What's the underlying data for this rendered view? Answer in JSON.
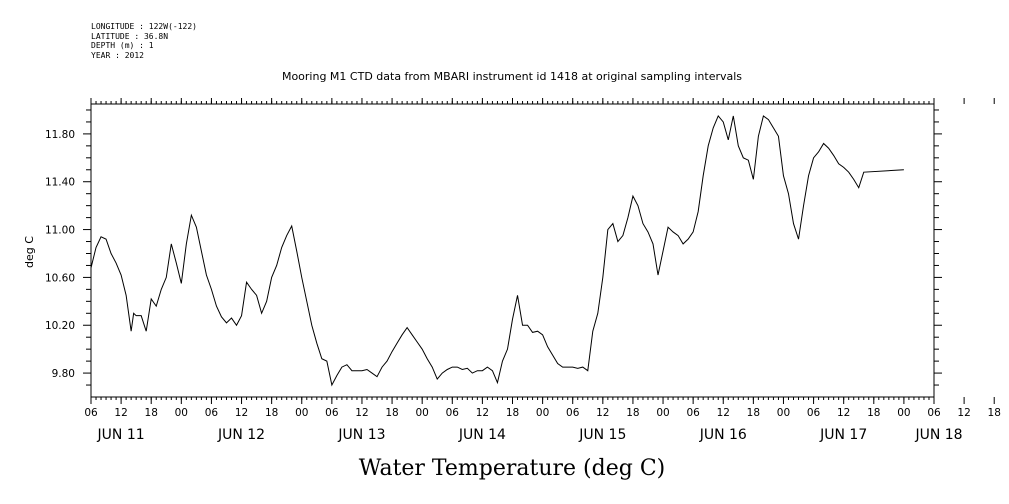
{
  "header_info": [
    "LONGITUDE : 122W(-122)",
    "LATITUDE : 36.8N",
    "DEPTH (m) : 1",
    "YEAR : 2012"
  ],
  "chart_data": {
    "type": "line",
    "title": "Mooring M1 CTD data from MBARI instrument id 1418 at original sampling intervals",
    "xlabel": "Water Temperature (deg C)",
    "ylabel": "deg C",
    "xlim": [
      "JUN 11 06:00",
      "JUN 18 06:00"
    ],
    "ylim": [
      9.6,
      12.05
    ],
    "yticks": [
      9.8,
      10.2,
      10.6,
      11.0,
      11.4,
      11.8
    ],
    "ytick_labels": [
      "9.80",
      "10.20",
      "10.60",
      "11.00",
      "11.40",
      "11.80"
    ],
    "xtick_hours": [
      "06",
      "12",
      "18",
      "00",
      "06",
      "12",
      "18",
      "00",
      "06",
      "12",
      "18",
      "00",
      "06",
      "12",
      "18",
      "00",
      "06",
      "12",
      "18",
      "00",
      "06",
      "12",
      "18",
      "00",
      "06",
      "12",
      "18",
      "00",
      "06",
      "12",
      "18",
      "00",
      "06",
      "12",
      "18",
      "00"
    ],
    "day_labels": [
      "JUN 11",
      "JUN 12",
      "JUN 13",
      "JUN 14",
      "JUN 15",
      "JUN 16",
      "JUN 17",
      "JUN 18"
    ],
    "grid": false,
    "series": [
      {
        "color": "#000000",
        "points": [
          [
            "JUN 11 06:00",
            10.68
          ],
          [
            "JUN 11 07:00",
            10.85
          ],
          [
            "JUN 11 08:00",
            10.94
          ],
          [
            "JUN 11 09:00",
            10.92
          ],
          [
            "JUN 11 10:00",
            10.8
          ],
          [
            "JUN 11 11:00",
            10.72
          ],
          [
            "JUN 11 12:00",
            10.62
          ],
          [
            "JUN 11 13:00",
            10.45
          ],
          [
            "JUN 11 14:00",
            10.15
          ],
          [
            "JUN 11 14:30",
            10.3
          ],
          [
            "JUN 11 15:00",
            10.28
          ],
          [
            "JUN 11 16:00",
            10.28
          ],
          [
            "JUN 11 17:00",
            10.15
          ],
          [
            "JUN 11 18:00",
            10.42
          ],
          [
            "JUN 11 19:00",
            10.36
          ],
          [
            "JUN 11 20:00",
            10.5
          ],
          [
            "JUN 11 21:00",
            10.6
          ],
          [
            "JUN 11 22:00",
            10.88
          ],
          [
            "JUN 11 23:00",
            10.72
          ],
          [
            "JUN 12 00:00",
            10.55
          ],
          [
            "JUN 12 01:00",
            10.88
          ],
          [
            "JUN 12 02:00",
            11.12
          ],
          [
            "JUN 12 03:00",
            11.02
          ],
          [
            "JUN 12 04:00",
            10.82
          ],
          [
            "JUN 12 05:00",
            10.62
          ],
          [
            "JUN 12 06:00",
            10.5
          ],
          [
            "JUN 12 07:00",
            10.36
          ],
          [
            "JUN 12 08:00",
            10.27
          ],
          [
            "JUN 12 09:00",
            10.22
          ],
          [
            "JUN 12 10:00",
            10.26
          ],
          [
            "JUN 12 11:00",
            10.2
          ],
          [
            "JUN 12 12:00",
            10.28
          ],
          [
            "JUN 12 13:00",
            10.56
          ],
          [
            "JUN 12 14:00",
            10.5
          ],
          [
            "JUN 12 15:00",
            10.45
          ],
          [
            "JUN 12 16:00",
            10.3
          ],
          [
            "JUN 12 17:00",
            10.4
          ],
          [
            "JUN 12 18:00",
            10.6
          ],
          [
            "JUN 12 19:00",
            10.7
          ],
          [
            "JUN 12 20:00",
            10.85
          ],
          [
            "JUN 12 21:00",
            10.95
          ],
          [
            "JUN 12 22:00",
            11.03
          ],
          [
            "JUN 12 23:00",
            10.82
          ],
          [
            "JUN 13 00:00",
            10.6
          ],
          [
            "JUN 13 01:00",
            10.4
          ],
          [
            "JUN 13 02:00",
            10.2
          ],
          [
            "JUN 13 03:00",
            10.05
          ],
          [
            "JUN 13 04:00",
            9.92
          ],
          [
            "JUN 13 05:00",
            9.9
          ],
          [
            "JUN 13 06:00",
            9.7
          ],
          [
            "JUN 13 07:00",
            9.78
          ],
          [
            "JUN 13 08:00",
            9.85
          ],
          [
            "JUN 13 09:00",
            9.87
          ],
          [
            "JUN 13 10:00",
            9.82
          ],
          [
            "JUN 13 11:00",
            9.82
          ],
          [
            "JUN 13 12:00",
            9.82
          ],
          [
            "JUN 13 13:00",
            9.83
          ],
          [
            "JUN 13 14:00",
            9.8
          ],
          [
            "JUN 13 15:00",
            9.77
          ],
          [
            "JUN 13 16:00",
            9.85
          ],
          [
            "JUN 13 17:00",
            9.9
          ],
          [
            "JUN 13 18:00",
            9.98
          ],
          [
            "JUN 13 19:00",
            10.05
          ],
          [
            "JUN 13 20:00",
            10.12
          ],
          [
            "JUN 13 21:00",
            10.18
          ],
          [
            "JUN 13 22:00",
            10.12
          ],
          [
            "JUN 13 23:00",
            10.06
          ],
          [
            "JUN 14 00:00",
            10.0
          ],
          [
            "JUN 14 01:00",
            9.92
          ],
          [
            "JUN 14 02:00",
            9.85
          ],
          [
            "JUN 14 03:00",
            9.75
          ],
          [
            "JUN 14 04:00",
            9.8
          ],
          [
            "JUN 14 05:00",
            9.83
          ],
          [
            "JUN 14 06:00",
            9.85
          ],
          [
            "JUN 14 07:00",
            9.85
          ],
          [
            "JUN 14 08:00",
            9.83
          ],
          [
            "JUN 14 09:00",
            9.84
          ],
          [
            "JUN 14 10:00",
            9.8
          ],
          [
            "JUN 14 11:00",
            9.82
          ],
          [
            "JUN 14 12:00",
            9.82
          ],
          [
            "JUN 14 13:00",
            9.85
          ],
          [
            "JUN 14 14:00",
            9.82
          ],
          [
            "JUN 14 15:00",
            9.72
          ],
          [
            "JUN 14 16:00",
            9.9
          ],
          [
            "JUN 14 17:00",
            10.0
          ],
          [
            "JUN 14 18:00",
            10.25
          ],
          [
            "JUN 14 19:00",
            10.45
          ],
          [
            "JUN 14 20:00",
            10.2
          ],
          [
            "JUN 14 21:00",
            10.2
          ],
          [
            "JUN 14 22:00",
            10.14
          ],
          [
            "JUN 14 23:00",
            10.15
          ],
          [
            "JUN 15 00:00",
            10.12
          ],
          [
            "JUN 15 01:00",
            10.02
          ],
          [
            "JUN 15 02:00",
            9.95
          ],
          [
            "JUN 15 03:00",
            9.88
          ],
          [
            "JUN 15 04:00",
            9.85
          ],
          [
            "JUN 15 05:00",
            9.85
          ],
          [
            "JUN 15 06:00",
            9.85
          ],
          [
            "JUN 15 07:00",
            9.84
          ],
          [
            "JUN 15 08:00",
            9.85
          ],
          [
            "JUN 15 09:00",
            9.82
          ],
          [
            "JUN 15 10:00",
            10.15
          ],
          [
            "JUN 15 11:00",
            10.3
          ],
          [
            "JUN 15 12:00",
            10.6
          ],
          [
            "JUN 15 13:00",
            11.0
          ],
          [
            "JUN 15 14:00",
            11.05
          ],
          [
            "JUN 15 15:00",
            10.9
          ],
          [
            "JUN 15 16:00",
            10.95
          ],
          [
            "JUN 15 17:00",
            11.1
          ],
          [
            "JUN 15 18:00",
            11.28
          ],
          [
            "JUN 15 19:00",
            11.2
          ],
          [
            "JUN 15 20:00",
            11.05
          ],
          [
            "JUN 15 21:00",
            10.98
          ],
          [
            "JUN 15 22:00",
            10.88
          ],
          [
            "JUN 15 23:00",
            10.62
          ],
          [
            "JUN 16 00:00",
            10.82
          ],
          [
            "JUN 16 01:00",
            11.02
          ],
          [
            "JUN 16 02:00",
            10.98
          ],
          [
            "JUN 16 03:00",
            10.95
          ],
          [
            "JUN 16 04:00",
            10.88
          ],
          [
            "JUN 16 05:00",
            10.92
          ],
          [
            "JUN 16 06:00",
            10.98
          ],
          [
            "JUN 16 07:00",
            11.15
          ],
          [
            "JUN 16 08:00",
            11.45
          ],
          [
            "JUN 16 09:00",
            11.7
          ],
          [
            "JUN 16 10:00",
            11.85
          ],
          [
            "JUN 16 11:00",
            11.95
          ],
          [
            "JUN 16 12:00",
            11.9
          ],
          [
            "JUN 16 13:00",
            11.75
          ],
          [
            "JUN 16 14:00",
            11.95
          ],
          [
            "JUN 16 15:00",
            11.7
          ],
          [
            "JUN 16 16:00",
            11.6
          ],
          [
            "JUN 16 17:00",
            11.58
          ],
          [
            "JUN 16 18:00",
            11.42
          ],
          [
            "JUN 16 19:00",
            11.78
          ],
          [
            "JUN 16 20:00",
            11.95
          ],
          [
            "JUN 16 21:00",
            11.92
          ],
          [
            "JUN 16 22:00",
            11.85
          ],
          [
            "JUN 16 23:00",
            11.78
          ],
          [
            "JUN 17 00:00",
            11.45
          ],
          [
            "JUN 17 01:00",
            11.3
          ],
          [
            "JUN 17 02:00",
            11.05
          ],
          [
            "JUN 17 03:00",
            10.92
          ],
          [
            "JUN 17 04:00",
            11.2
          ],
          [
            "JUN 17 05:00",
            11.45
          ],
          [
            "JUN 17 06:00",
            11.6
          ],
          [
            "JUN 17 07:00",
            11.65
          ],
          [
            "JUN 17 08:00",
            11.72
          ],
          [
            "JUN 17 09:00",
            11.68
          ],
          [
            "JUN 17 10:00",
            11.62
          ],
          [
            "JUN 17 11:00",
            11.55
          ],
          [
            "JUN 17 12:00",
            11.52
          ],
          [
            "JUN 17 13:00",
            11.48
          ],
          [
            "JUN 17 14:00",
            11.42
          ],
          [
            "JUN 17 15:00",
            11.35
          ],
          [
            "JUN 17 16:00",
            11.48
          ],
          [
            "JUN 18 00:00",
            11.5
          ]
        ]
      }
    ]
  }
}
